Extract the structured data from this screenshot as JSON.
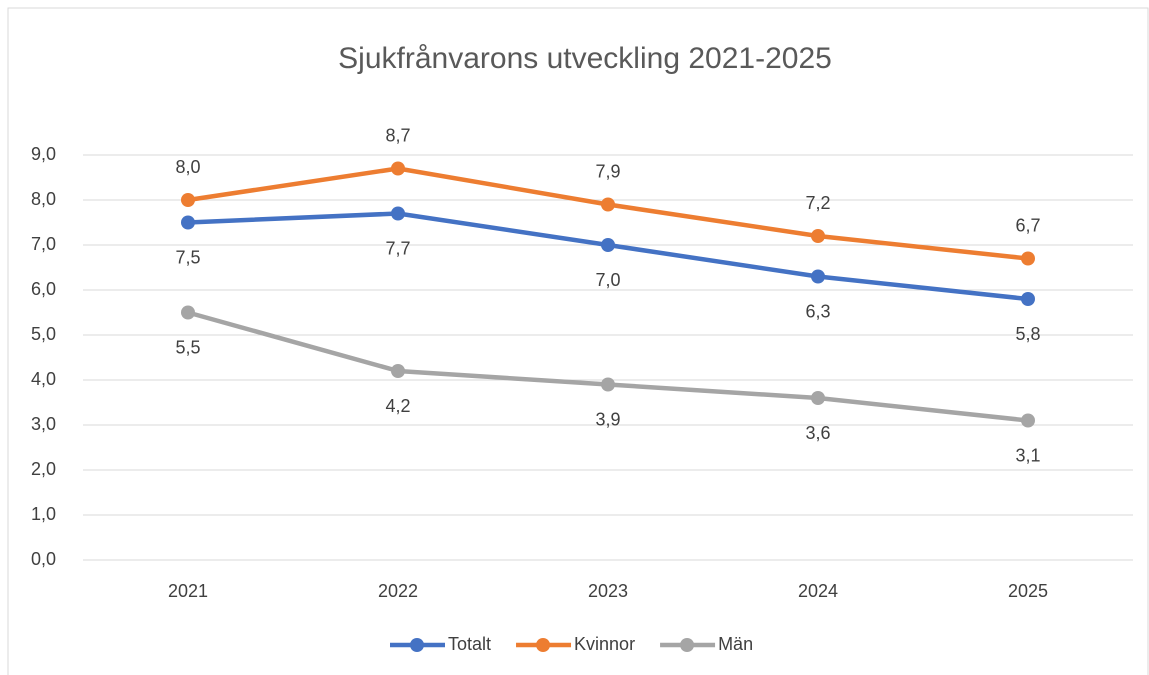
{
  "chart_data": {
    "type": "line",
    "title": "Sjukfrånvarons utveckling 2021-2025",
    "categories": [
      "2021",
      "2022",
      "2023",
      "2024",
      "2025"
    ],
    "series": [
      {
        "name": "Totalt",
        "color": "#4472c4",
        "values": [
          7.5,
          7.7,
          7.0,
          6.3,
          5.8
        ],
        "value_labels": [
          "7,5",
          "7,7",
          "7,0",
          "6,3",
          "5,8"
        ]
      },
      {
        "name": "Kvinnor",
        "color": "#ed7d31",
        "values": [
          8.0,
          8.7,
          7.9,
          7.2,
          6.7
        ],
        "value_labels": [
          "8,0",
          "8,7",
          "7,9",
          "7,2",
          "6,7"
        ]
      },
      {
        "name": "Män",
        "color": "#a5a5a5",
        "values": [
          5.5,
          4.2,
          3.9,
          3.6,
          3.1
        ],
        "value_labels": [
          "5,5",
          "4,2",
          "3,9",
          "3,6",
          "3,1"
        ]
      }
    ],
    "ylim": [
      0,
      9
    ],
    "yticks": [
      {
        "value": 0,
        "label": "0,0"
      },
      {
        "value": 1,
        "label": "1,0"
      },
      {
        "value": 2,
        "label": "2,0"
      },
      {
        "value": 3,
        "label": "3,0"
      },
      {
        "value": 4,
        "label": "4,0"
      },
      {
        "value": 5,
        "label": "5,0"
      },
      {
        "value": 6,
        "label": "6,0"
      },
      {
        "value": 7,
        "label": "7,0"
      },
      {
        "value": 8,
        "label": "8,0"
      },
      {
        "value": 9,
        "label": "9,0"
      }
    ],
    "grid": true,
    "legend": "bottom"
  }
}
